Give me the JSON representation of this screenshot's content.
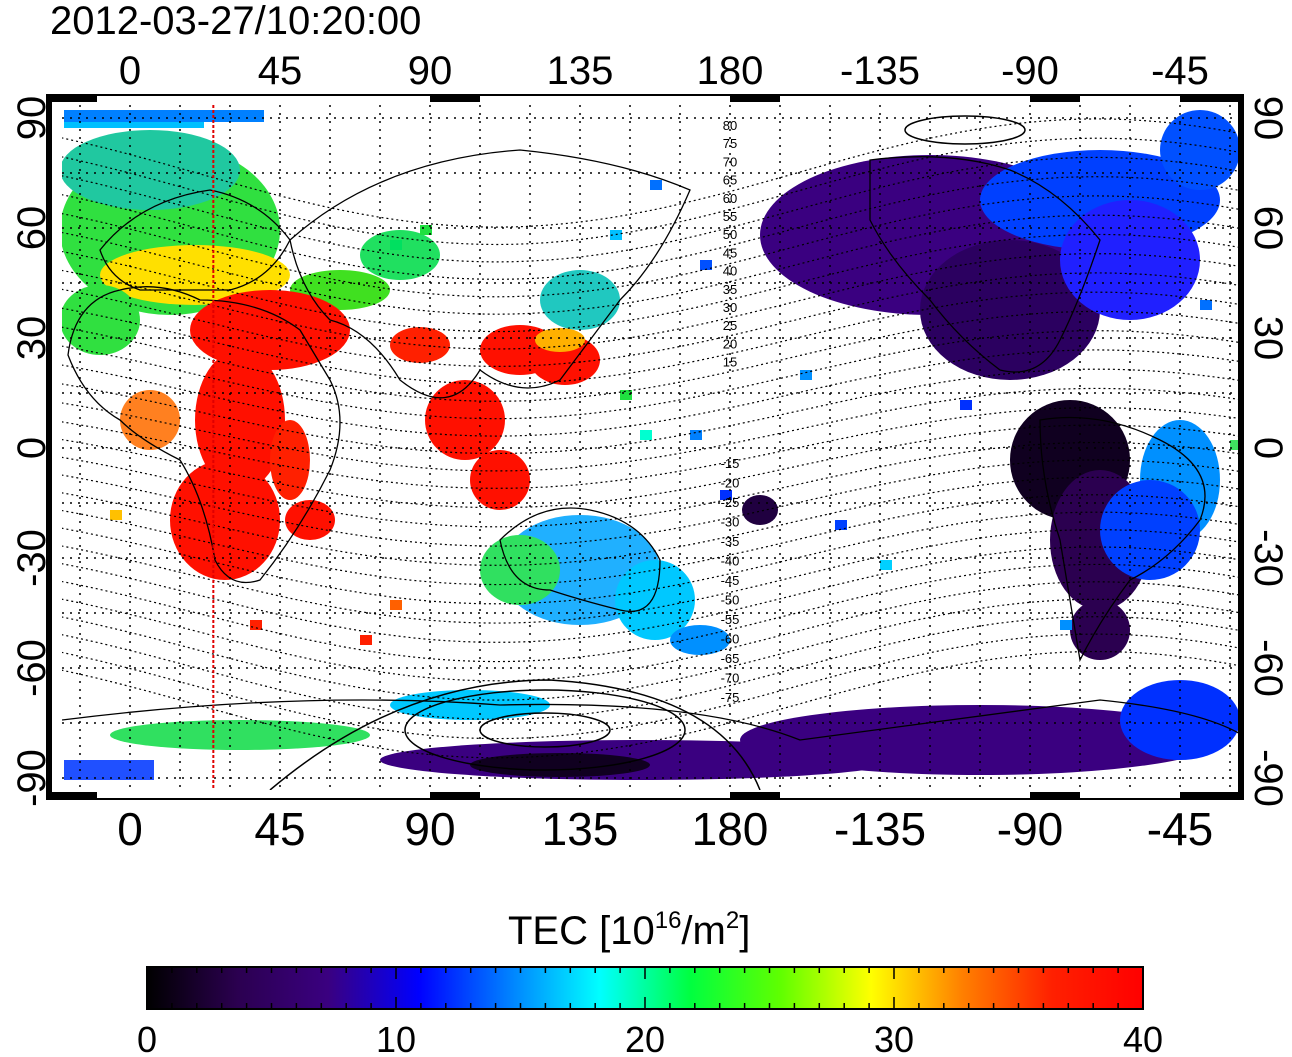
{
  "timestamp": "2012-03-27/10:20:00",
  "map": {
    "lon_ticks_top": [
      "0",
      "45",
      "90",
      "135",
      "180",
      "-135",
      "-90",
      "-45"
    ],
    "lon_ticks_bottom": [
      "0",
      "45",
      "90",
      "135",
      "180",
      "-135",
      "-90",
      "-45"
    ],
    "lat_ticks_left": [
      "90",
      "60",
      "30",
      "0",
      "-30",
      "-60",
      "-90"
    ],
    "lat_ticks_right": [
      "90",
      "60",
      "30",
      "0",
      "-30",
      "-60",
      "-90"
    ],
    "contour_labels_north": [
      "80",
      "75",
      "70",
      "65",
      "60",
      "55",
      "50",
      "45",
      "40",
      "35",
      "30",
      "25",
      "20",
      "15"
    ],
    "contour_labels_south": [
      "-15",
      "-20",
      "-25",
      "-30",
      "-35",
      "-40",
      "-45",
      "-50",
      "-55",
      "-60",
      "-65",
      "-70",
      "-75"
    ],
    "lon_range": [
      -25,
      335
    ],
    "lat_range": [
      -90,
      90
    ],
    "marker_longitude": 25,
    "marker_color": "#e00000"
  },
  "colorbar": {
    "title_text": "TEC  [10",
    "title_sup1": "16",
    "title_mid": "/m",
    "title_sup2": "2",
    "title_end": "]",
    "ticks": [
      "0",
      "10",
      "20",
      "30",
      "40"
    ],
    "range": [
      0,
      40
    ],
    "colors": [
      "#000000",
      "#2b0050",
      "#3a0080",
      "#0000ff",
      "#0080ff",
      "#00ffff",
      "#00ff40",
      "#60ff00",
      "#ffff00",
      "#ff8000",
      "#ff2000",
      "#ff0000"
    ]
  }
}
